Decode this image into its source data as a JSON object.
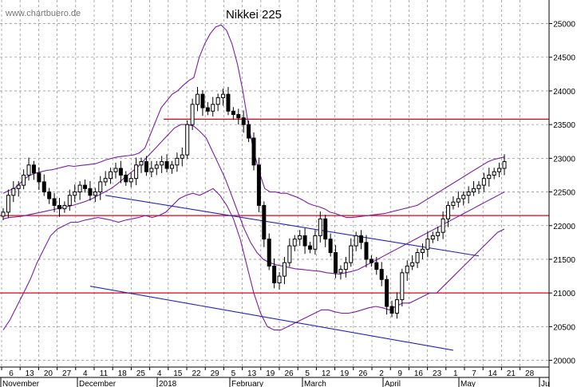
{
  "chart_data": {
    "type": "candlestick",
    "title": "Nikkei 225",
    "watermark": "www.chartbuero.de",
    "ylim": [
      19900,
      25350
    ],
    "y_ticks": [
      20000,
      20500,
      21000,
      21500,
      22000,
      22500,
      23000,
      23500,
      24000,
      24500,
      25000
    ],
    "x_day_ticks": [
      "6",
      "13",
      "20",
      "27",
      "4",
      "11",
      "18",
      "25",
      "4",
      "15",
      "22",
      "29",
      "5",
      "13",
      "19",
      "26",
      "5",
      "12",
      "19",
      "26",
      "2",
      "9",
      "16",
      "23",
      "1",
      "7",
      "14",
      "21",
      "28"
    ],
    "x_month_labels": [
      "November",
      "December",
      "2018",
      "February",
      "March",
      "April",
      "May",
      "Ju"
    ],
    "colors": {
      "candle": "#000000",
      "bollinger": "#7a1fa2",
      "support_resistance": "#e8000f",
      "channel": "#1f22c8",
      "grid": "#999999"
    },
    "horizontal_lines": [
      23580,
      22150,
      21000
    ],
    "channel_lines": [
      {
        "from": [
          20,
          22450
        ],
        "to": [
          93,
          21550
        ]
      },
      {
        "from": [
          17,
          21100
        ],
        "to": [
          88,
          20150
        ]
      }
    ],
    "closes": [
      22200,
      22450,
      22550,
      22600,
      22750,
      22900,
      22780,
      22650,
      22500,
      22400,
      22300,
      22250,
      22300,
      22450,
      22500,
      22600,
      22550,
      22450,
      22500,
      22650,
      22700,
      22800,
      22850,
      22750,
      22650,
      22700,
      22900,
      22950,
      22800,
      22850,
      22900,
      22950,
      22850,
      22900,
      23000,
      23050,
      23500,
      23800,
      23950,
      23750,
      23700,
      23800,
      23900,
      23950,
      23700,
      23650,
      23600,
      23500,
      23300,
      22900,
      22300,
      21800,
      21400,
      21150,
      21250,
      21450,
      21700,
      21800,
      21850,
      21700,
      21650,
      21850,
      22100,
      21800,
      21600,
      21300,
      21350,
      21450,
      21700,
      21850,
      21750,
      21500,
      21450,
      21350,
      21200,
      20800,
      20700,
      20900,
      21300,
      21400,
      21450,
      21600,
      21650,
      21800,
      21850,
      21900,
      22100,
      22300,
      22350,
      22400,
      22450,
      22500,
      22550,
      22600,
      22700,
      22750,
      22800,
      22850,
      22950
    ],
    "bollinger_upper": [
      22480,
      22520,
      22550,
      22620,
      22700,
      22750,
      22780,
      22800,
      22820,
      22830,
      22850,
      22870,
      22890,
      22880,
      22890,
      22900,
      22910,
      22920,
      22950,
      22980,
      23000,
      23020,
      23030,
      23040,
      23050,
      23080,
      23150,
      23350,
      23550,
      23750,
      23850,
      23950,
      24000,
      24080,
      24150,
      24200,
      24500,
      24700,
      24850,
      24950,
      24980,
      24900,
      24700,
      24400,
      24000,
      23500,
      23100,
      22800,
      22550,
      22500,
      22500,
      22480,
      22480,
      22450,
      22420,
      22380,
      22330,
      22300,
      22280,
      22250,
      22200,
      22180,
      22150,
      22120,
      22120,
      22130,
      22140,
      22150,
      22160,
      22170,
      22180,
      22200,
      22220,
      22240,
      22260,
      22280,
      22300,
      22350,
      22400,
      22450,
      22500,
      22550,
      22600,
      22650,
      22700,
      22750,
      22800,
      22850,
      22900,
      22950,
      22980,
      23000,
      23020
    ],
    "bollinger_middle": [
      22100,
      22120,
      22130,
      22140,
      22160,
      22180,
      22200,
      22220,
      22240,
      22260,
      22280,
      22300,
      22330,
      22360,
      22400,
      22450,
      22500,
      22550,
      22620,
      22700,
      22780,
      22850,
      22950,
      23050,
      23150,
      23250,
      23350,
      23450,
      23500,
      23500,
      23480,
      23400,
      23300,
      23100,
      22900,
      22700,
      22450,
      22200,
      21950,
      21750,
      21600,
      21500,
      21450,
      21420,
      21400,
      21380,
      21360,
      21350,
      21340,
      21330,
      21320,
      21300,
      21290,
      21280,
      21300,
      21320,
      21350,
      21400,
      21450,
      21500,
      21550,
      21600,
      21650,
      21700,
      21750,
      21800,
      21850,
      21900,
      21950,
      22000,
      22050,
      22100,
      22150,
      22200,
      22250,
      22300,
      22350,
      22400,
      22450,
      22500
    ],
    "bollinger_lower": [
      20450,
      20600,
      20800,
      21000,
      21200,
      21450,
      21650,
      21850,
      21950,
      22000,
      22050,
      22050,
      22080,
      22100,
      22120,
      22100,
      22080,
      22050,
      22080,
      22100,
      22120,
      22150,
      22120,
      22150,
      22200,
      22300,
      22400,
      22450,
      22480,
      22450,
      22500,
      22550,
      22450,
      22300,
      22100,
      21800,
      21400,
      21000,
      20700,
      20500,
      20450,
      20450,
      20500,
      20550,
      20600,
      20650,
      20700,
      20750,
      20750,
      20720,
      20700,
      20700,
      20720,
      20750,
      20780,
      20800,
      20780,
      20750,
      20800,
      20850,
      20850,
      20900,
      20950,
      21000,
      21000,
      21100,
      21200,
      21300,
      21400,
      21500,
      21600,
      21700,
      21800,
      21900,
      21950
    ]
  }
}
